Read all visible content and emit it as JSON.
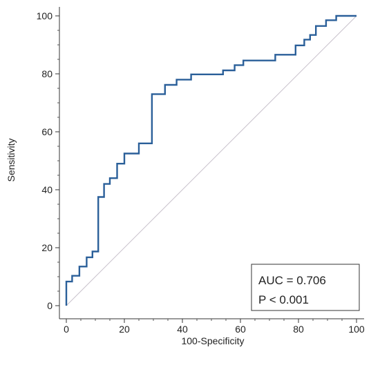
{
  "chart_data": {
    "type": "line",
    "title": "",
    "xlabel": "100-Specificity",
    "ylabel": "Sensitivity",
    "xlim": [
      0,
      100
    ],
    "ylim": [
      0,
      100
    ],
    "x_ticks": [
      0,
      20,
      40,
      60,
      80,
      100
    ],
    "y_ticks": [
      0,
      20,
      40,
      60,
      80,
      100
    ],
    "x_tick_labels": [
      "0",
      "20",
      "40",
      "60",
      "80",
      "100"
    ],
    "y_tick_labels": [
      "0",
      "20",
      "40",
      "60",
      "80",
      "100"
    ],
    "grid": false,
    "minor_ticks": true,
    "series": [
      {
        "line_style": "step",
        "color": "#2a5f99",
        "x": [
          0,
          0,
          2,
          2,
          4.5,
          4.5,
          7,
          7,
          9,
          9,
          11,
          11,
          13,
          13,
          15,
          15,
          17.5,
          17.5,
          20,
          20,
          25,
          25,
          29.5,
          29.5,
          34,
          34,
          38,
          38,
          43,
          43,
          54,
          54,
          58,
          58,
          61,
          61,
          72,
          72,
          79,
          79,
          82,
          82,
          84,
          84,
          86,
          86,
          89.5,
          89.5,
          93,
          93,
          100
        ],
        "y": [
          0,
          8.3,
          8.3,
          10.3,
          10.3,
          13.5,
          13.5,
          16.7,
          16.7,
          18.7,
          18.7,
          37.5,
          37.5,
          42,
          42,
          44,
          44,
          49,
          49,
          52.5,
          52.5,
          56,
          56,
          73,
          73,
          76.2,
          76.2,
          78,
          78,
          79.8,
          79.8,
          81.2,
          81.2,
          83,
          83,
          84.6,
          84.6,
          86.6,
          86.6,
          89.8,
          89.8,
          91.8,
          91.8,
          93.4,
          93.4,
          96.5,
          96.5,
          98.5,
          98.5,
          100,
          100
        ]
      },
      {
        "line_style": "reference",
        "color": "#c9c2cc",
        "x": [
          0,
          100
        ],
        "y": [
          0,
          100
        ]
      }
    ],
    "annotation": {
      "lines": [
        "AUC = 0.706",
        "P < 0.001"
      ],
      "placement": "bottom-right"
    }
  }
}
